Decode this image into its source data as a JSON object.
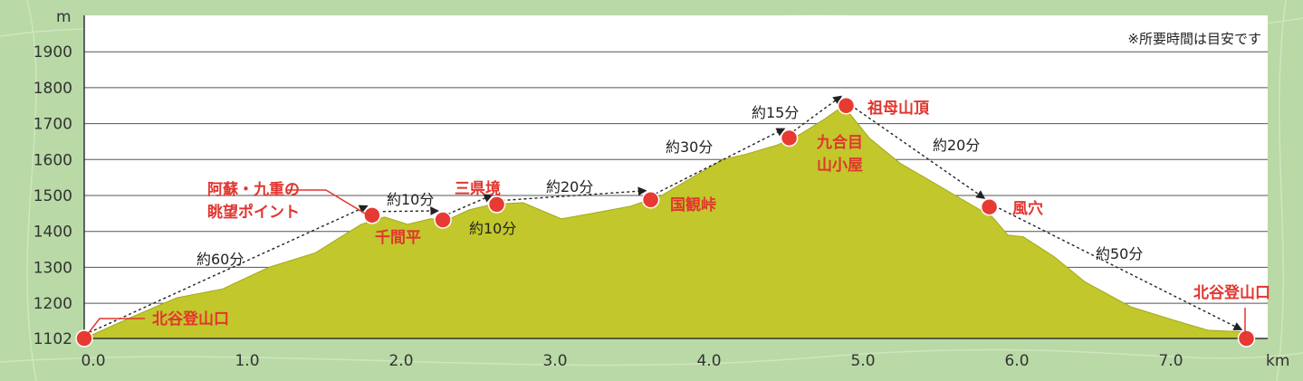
{
  "chart_data": {
    "type": "area",
    "y_unit": "m",
    "x_unit": "km",
    "xlim": [
      0,
      7.6
    ],
    "ylim": [
      1102,
      1980
    ],
    "y_ticks": [
      "1102",
      "1200",
      "1300",
      "1400",
      "1500",
      "1600",
      "1700",
      "1800",
      "1900"
    ],
    "x_ticks": [
      "0.0",
      "1.0",
      "2.0",
      "3.0",
      "4.0",
      "5.0",
      "6.0",
      "7.0"
    ],
    "note": "※所要時間は目安です",
    "colors": {
      "fill": "#c2c72b",
      "points": "#e73a33",
      "labels": "#e2352f",
      "plot_bg": "#ffffff",
      "background": "#b9d9a6"
    },
    "profile": {
      "x": [
        0.0,
        0.3,
        0.6,
        0.9,
        1.2,
        1.5,
        1.8,
        1.95,
        2.1,
        2.25,
        2.35,
        2.5,
        2.65,
        2.85,
        3.1,
        3.3,
        3.55,
        3.75,
        3.95,
        4.15,
        4.3,
        4.5,
        4.65,
        4.8,
        4.9,
        4.95,
        5.1,
        5.3,
        5.5,
        5.7,
        5.9,
        6.0,
        6.1,
        6.3,
        6.5,
        6.8,
        7.1,
        7.3,
        7.55
      ],
      "y": [
        1102,
        1160,
        1215,
        1240,
        1300,
        1340,
        1420,
        1440,
        1420,
        1435,
        1430,
        1460,
        1475,
        1480,
        1435,
        1450,
        1470,
        1500,
        1550,
        1600,
        1615,
        1640,
        1670,
        1710,
        1740,
        1740,
        1660,
        1590,
        1540,
        1490,
        1440,
        1390,
        1385,
        1330,
        1260,
        1190,
        1150,
        1125,
        1120
      ]
    },
    "points": [
      {
        "name": "北谷登山口",
        "x": 0.0,
        "y": 1102
      },
      {
        "name": "阿蘇・九重の眺望ポイント",
        "x": 1.87,
        "y": 1445
      },
      {
        "name": "千間平",
        "x": 2.33,
        "y": 1432
      },
      {
        "name": "三県境",
        "x": 2.68,
        "y": 1475
      },
      {
        "name": "国観峠",
        "x": 3.68,
        "y": 1488
      },
      {
        "name": "九合目山小屋",
        "x": 4.58,
        "y": 1660
      },
      {
        "name": "祖母山頂",
        "x": 4.95,
        "y": 1750
      },
      {
        "name": "風穴",
        "x": 5.88,
        "y": 1468
      },
      {
        "name": "北谷登山口",
        "x": 7.55,
        "y": 1102
      }
    ],
    "segments": [
      "約60分",
      "約10分",
      "約10分",
      "約20分",
      "約30分",
      "約15分",
      "約20分",
      "約50分"
    ]
  },
  "labels": {
    "north_start": "北谷登山口",
    "viewpoint_line1": "阿蘇・九重の",
    "viewpoint_line2": "眺望ポイント",
    "sengenbira": "千間平",
    "sankenzakai": "三県境",
    "kunimitoge": "国観峠",
    "hut_line1": "九合目",
    "hut_line2": "山小屋",
    "summit": "祖母山頂",
    "fuketsu": "風穴",
    "north_end": "北谷登山口"
  }
}
